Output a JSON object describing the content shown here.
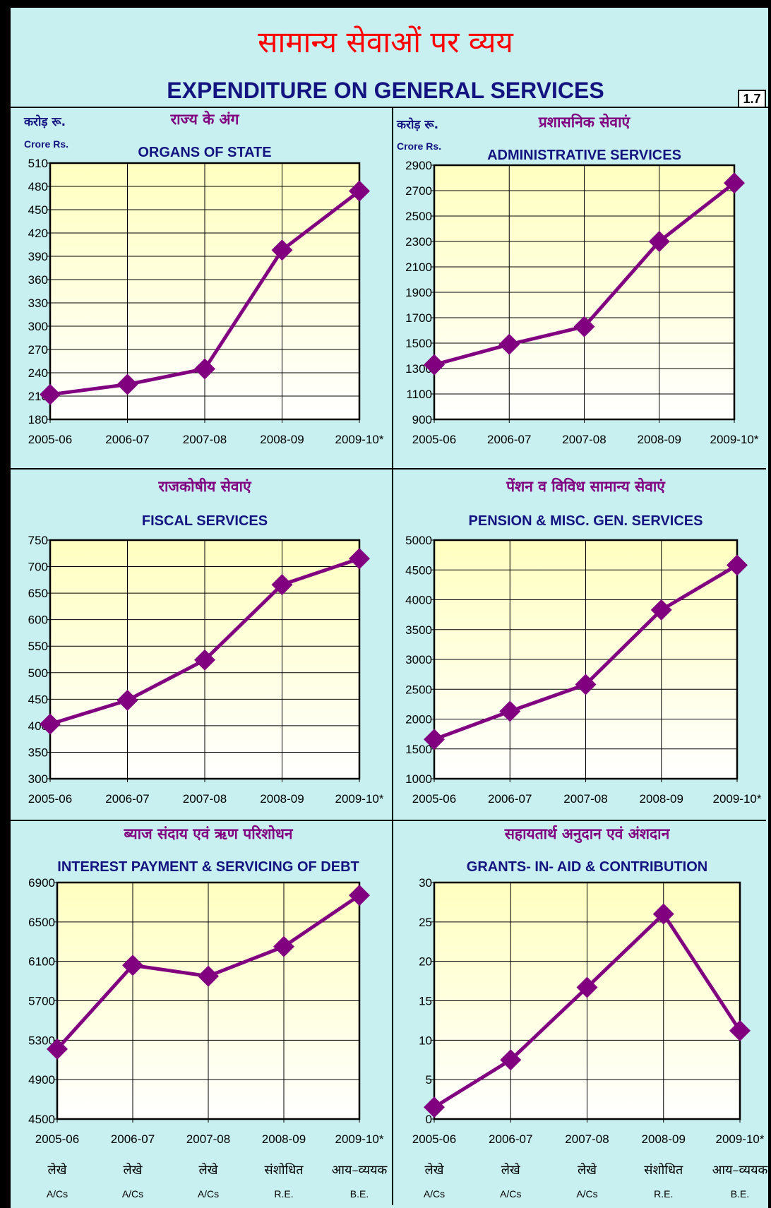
{
  "page": {
    "title_hi": "सामान्य सेवाओं पर व्यय",
    "title_en": "EXPENDITURE ON GENERAL SERVICES",
    "figure_no": "1.7",
    "unit_hi": "करोड़ रू.",
    "unit_en": "Crore Rs."
  },
  "colors": {
    "line": "#800080",
    "title": "#141480",
    "hindi": "#800080",
    "background": "#c8f0f0"
  },
  "x_footer": [
    {
      "hi": "लेखे",
      "en": "A/Cs"
    },
    {
      "hi": "लेखे",
      "en": "A/Cs"
    },
    {
      "hi": "लेखे",
      "en": "A/Cs"
    },
    {
      "hi": "संशोधित",
      "en": "R.E."
    },
    {
      "hi": "आय–व्ययक",
      "en": "B.E."
    }
  ],
  "chart_data": [
    {
      "type": "line",
      "title_hi": "राज्य के अंग",
      "title": "ORGANS OF STATE",
      "ylabel_hi": "करोड़ रू.",
      "ylabel": "Crore Rs.",
      "categories": [
        "2005-06",
        "2006-07",
        "2007-08",
        "2008-09",
        "2009-10*"
      ],
      "values": [
        212,
        225,
        245,
        398,
        474
      ],
      "ylim": [
        180,
        510
      ],
      "yticks": [
        180,
        210,
        240,
        270,
        300,
        330,
        360,
        390,
        420,
        450,
        480,
        510
      ],
      "grid": true
    },
    {
      "type": "line",
      "title_hi": "प्रशासनिक सेवाएं",
      "title": "ADMINISTRATIVE SERVICES",
      "ylabel_hi": "करोड़ रू.",
      "ylabel": "Crore Rs.",
      "categories": [
        "2005-06",
        "2006-07",
        "2007-08",
        "2008-09",
        "2009-10*"
      ],
      "values": [
        1330,
        1490,
        1630,
        2300,
        2760
      ],
      "ylim": [
        900,
        2900
      ],
      "yticks": [
        900,
        1100,
        1300,
        1500,
        1700,
        1900,
        2100,
        2300,
        2500,
        2700,
        2900
      ],
      "grid": true
    },
    {
      "type": "line",
      "title_hi": "राजकोषीय सेवाएं",
      "title": "FISCAL SERVICES",
      "categories": [
        "2005-06",
        "2006-07",
        "2007-08",
        "2008-09",
        "2009-10*"
      ],
      "values": [
        403,
        448,
        524,
        666,
        715
      ],
      "ylim": [
        300,
        750
      ],
      "yticks": [
        300,
        350,
        400,
        450,
        500,
        550,
        600,
        650,
        700,
        750
      ],
      "grid": true
    },
    {
      "type": "line",
      "title_hi": "पेंशन व विविध सामान्य सेवाएं",
      "title": "PENSION & MISC. GEN. SERVICES",
      "categories": [
        "2005-06",
        "2006-07",
        "2007-08",
        "2008-09",
        "2009-10*"
      ],
      "values": [
        1660,
        2130,
        2580,
        3830,
        4580
      ],
      "ylim": [
        1000,
        5000
      ],
      "yticks": [
        1000,
        1500,
        2000,
        2500,
        3000,
        3500,
        4000,
        4500,
        5000
      ],
      "grid": true
    },
    {
      "type": "line",
      "title_hi": "ब्याज संदाय एवं ऋण परिशोधन",
      "title": "INTEREST PAYMENT & SERVICING OF  DEBT",
      "categories": [
        "2005-06",
        "2006-07",
        "2007-08",
        "2008-09",
        "2009-10*"
      ],
      "values": [
        5210,
        6060,
        5950,
        6250,
        6770
      ],
      "ylim": [
        4500,
        6900
      ],
      "yticks": [
        4500,
        4900,
        5300,
        5700,
        6100,
        6500,
        6900
      ],
      "grid": true
    },
    {
      "type": "line",
      "title_hi": "सहायतार्थ अनुदान एवं अंशदान",
      "title": "GRANTS- IN- AID & CONTRIBUTION",
      "categories": [
        "2005-06",
        "2006-07",
        "2007-08",
        "2008-09",
        "2009-10*"
      ],
      "values": [
        1.5,
        7.5,
        16.7,
        26,
        11.2
      ],
      "ylim": [
        0,
        30
      ],
      "yticks": [
        0,
        5,
        10,
        15,
        20,
        25,
        30
      ],
      "grid": true
    }
  ]
}
